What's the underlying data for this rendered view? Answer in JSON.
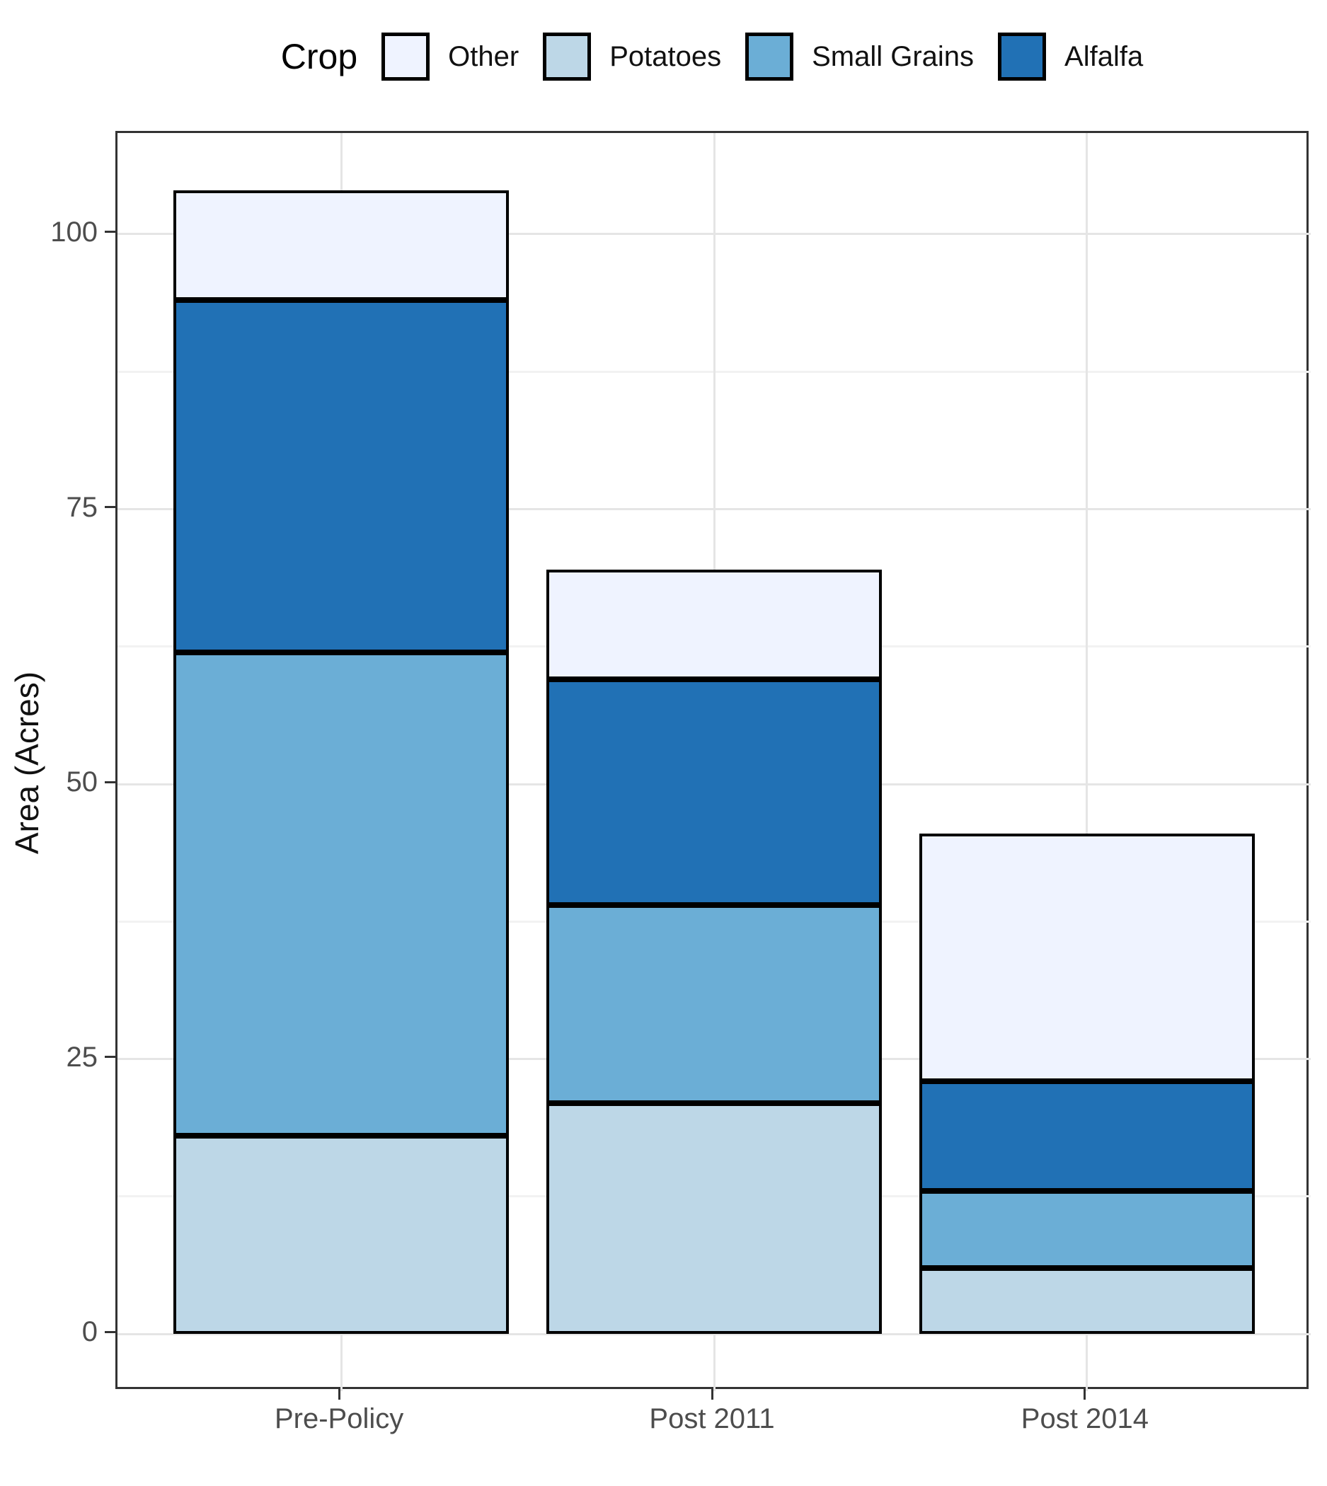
{
  "chart_data": {
    "type": "bar",
    "stacked": true,
    "categories": [
      "Pre-Policy",
      "Post 2011",
      "Post 2014"
    ],
    "series": [
      {
        "name": "Potatoes",
        "color": "#BDD7E7",
        "values": [
          18,
          21,
          6
        ]
      },
      {
        "name": "Small Grains",
        "color": "#6BAED6",
        "values": [
          44,
          18,
          7
        ]
      },
      {
        "name": "Alfalfa",
        "color": "#2171B5",
        "values": [
          32,
          20.5,
          10
        ]
      },
      {
        "name": "Other",
        "color": "#EFF3FF",
        "values": [
          10,
          10,
          22.5
        ]
      }
    ],
    "stack_totals": [
      104,
      69.5,
      45.5
    ],
    "title": "",
    "xlabel": "",
    "ylabel": "Area (Acres)",
    "y_ticks": [
      0,
      25,
      50,
      75,
      100
    ],
    "y_minor_ticks": [
      12.5,
      37.5,
      62.5,
      87.5
    ],
    "ylim": [
      0,
      104
    ],
    "grid": {
      "major": true,
      "minor_y": true,
      "minor_x": false
    },
    "legend": {
      "title": "Crop",
      "position": "top",
      "order": [
        "Other",
        "Potatoes",
        "Small Grains",
        "Alfalfa"
      ]
    }
  },
  "style": {
    "bar_border_color": "#000000",
    "panel_border_color": "#333333",
    "grid_major_color": "#e5e5e5",
    "grid_minor_color": "#f2f2f2",
    "axis_text_color": "#4d4d4d",
    "text_color": "#111111"
  }
}
